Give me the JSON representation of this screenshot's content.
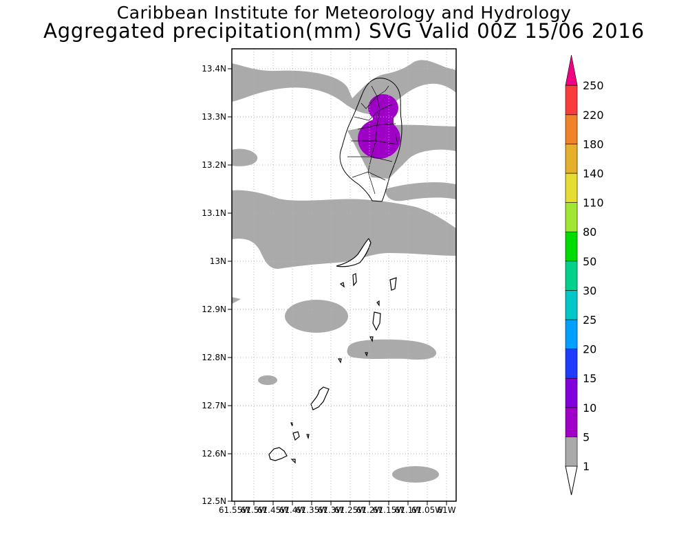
{
  "header": {
    "title": "Caribbean Institute for Meteorology and Hydrology",
    "subtitle": "Aggregated precipitation(mm) SVG Valid 00Z 15/06 2016"
  },
  "map": {
    "region": "St. Vincent and the Grenadines",
    "lat_labels": [
      "13.4N",
      "13.3N",
      "13.2N",
      "13.1N",
      "13N",
      "12.9N",
      "12.8N",
      "12.7N",
      "12.6N",
      "12.5N"
    ],
    "lon_labels": [
      "61.55W",
      "61.5W",
      "61.45W",
      "61.4W",
      "61.35W",
      "61.3W",
      "61.25W",
      "61.2W",
      "61.15W",
      "61.1W",
      "61.05W",
      "61W"
    ],
    "background_color": "#ffffff",
    "coastline_color": "#000000"
  },
  "colorbar": {
    "labels": [
      "1",
      "5",
      "10",
      "15",
      "20",
      "25",
      "30",
      "50",
      "80",
      "110",
      "140",
      "180",
      "220",
      "250"
    ],
    "colors": [
      "#aaaaaa",
      "#a000c8",
      "#8200dc",
      "#1e3cff",
      "#00a0ff",
      "#00c8c8",
      "#00d28c",
      "#00dc00",
      "#a0e632",
      "#e6dc32",
      "#e6af2d",
      "#f08228",
      "#fa3c3c",
      "#f00082"
    ]
  }
}
